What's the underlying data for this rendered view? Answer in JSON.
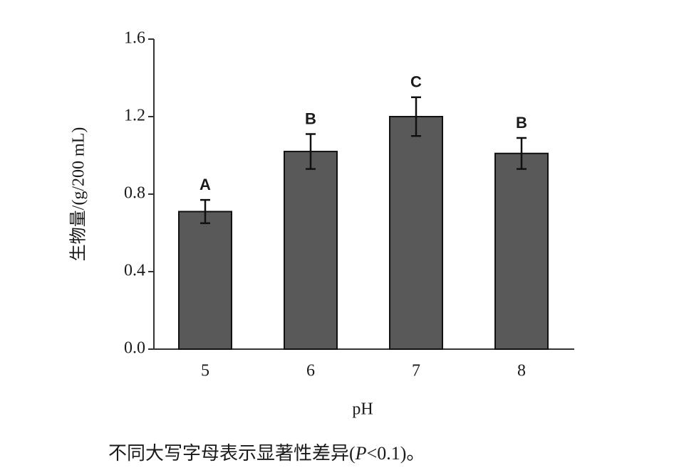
{
  "chart_data": {
    "type": "bar",
    "x_label": "pH",
    "y_label": "生物量/(g/200 mL)",
    "categories": [
      "5",
      "6",
      "7",
      "8"
    ],
    "values": [
      0.71,
      1.02,
      1.2,
      1.01
    ],
    "errors": [
      0.06,
      0.09,
      0.1,
      0.08
    ],
    "significance_labels": [
      "A",
      "B",
      "C",
      "B"
    ],
    "color": "#595959",
    "ylim": [
      0,
      1.6
    ],
    "yticks": [
      {
        "value": 0,
        "label": "0.0"
      },
      0.4,
      0.8,
      1.2,
      1.6
    ],
    "note": [
      "不同大写字母表示显著性差异(",
      "P",
      "<0.1)。"
    ]
  }
}
